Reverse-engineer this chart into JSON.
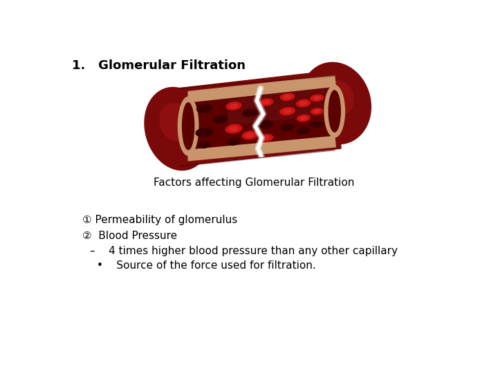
{
  "title": "1.   Glomerular Filtration",
  "subtitle": "Factors affecting Glomerular Filtration",
  "bullet1": "① Permeability of glomerulus",
  "bullet2": "②  Blood Pressure",
  "bullet3": "–    4 times higher blood pressure than any other capillary",
  "bullet4": "•    Source of the force used for filtration.",
  "bg_color": "#ffffff",
  "title_fontsize": 13,
  "subtitle_fontsize": 11,
  "bullet_fontsize": 11,
  "vessel_outer_color": "#8B1010",
  "vessel_wall_color": "#C8956C",
  "vessel_lumen_color": "#6B0000",
  "vessel_rbc_color": "#CC0000",
  "vessel_rbc_dark": "#220000"
}
